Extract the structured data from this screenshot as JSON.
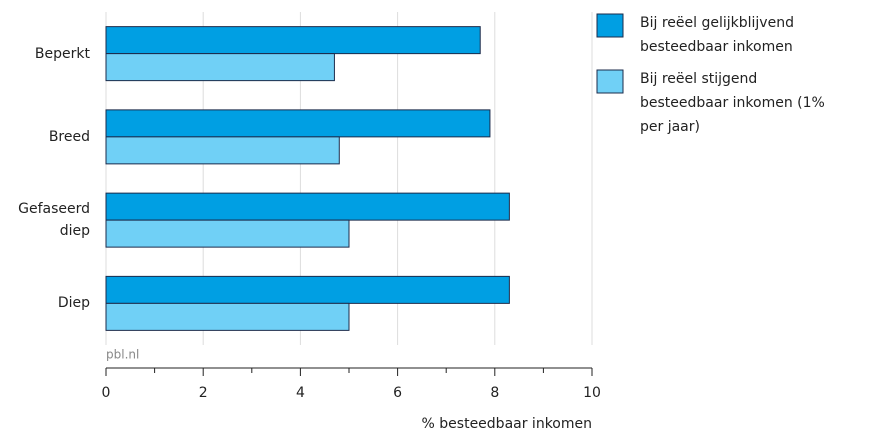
{
  "chart_data": {
    "type": "bar",
    "orientation": "horizontal",
    "categories": [
      "Beperkt",
      "Breed",
      "Gefaseerd diep",
      "Diep"
    ],
    "series": [
      {
        "name": "Bij reëel gelijkblijvend besteedbaar inkomen",
        "color": "#009fe3",
        "values": [
          7.7,
          7.9,
          8.3,
          8.3
        ]
      },
      {
        "name": "Bij reëel stijgend besteedbaar inkomen (1% per jaar)",
        "color": "#70d0f6",
        "values": [
          4.7,
          4.8,
          5.0,
          5.0
        ]
      }
    ],
    "xlim": [
      0,
      10
    ],
    "xticks": [
      0,
      2,
      4,
      6,
      8,
      10
    ],
    "grid": true,
    "xlabel": "% besteedbaar inkomen",
    "source": "pbl.nl",
    "legend": "top-right"
  }
}
